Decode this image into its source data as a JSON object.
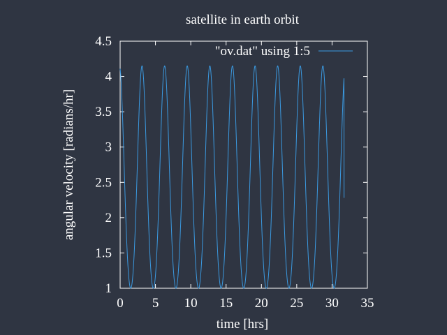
{
  "chart_data": {
    "type": "line",
    "title": "satellite in earth orbit",
    "xlabel": "time [hrs]",
    "ylabel": "angular velocity [radians/hr]",
    "xlim": [
      0,
      35
    ],
    "ylim": [
      1,
      4.5
    ],
    "xticks": [
      0,
      5,
      10,
      15,
      20,
      25,
      30,
      35
    ],
    "yticks": [
      1,
      1.5,
      2,
      2.5,
      3,
      3.5,
      4,
      4.5
    ],
    "xtick_labels": [
      "0",
      "5",
      "10",
      "15",
      "20",
      "25",
      "30",
      "35"
    ],
    "ytick_labels": [
      "1",
      "1.5",
      "2",
      "2.5",
      "3",
      "3.5",
      "4",
      "4.5"
    ],
    "grid": false,
    "legend_position": "top-right",
    "colors": {
      "background": "#2f3542",
      "axes": "#ffffff",
      "series": "#3b9ae1"
    },
    "series": [
      {
        "name": "\"ov.dat\" using 1:5",
        "period_hrs": 3.2,
        "peak_times": [
          3.1,
          6.3,
          9.5,
          12.7,
          15.9,
          19.1,
          22.3,
          25.5,
          28.7
        ],
        "min_value": 1.0,
        "max_value": 4.15,
        "end_x": 31.7,
        "end_value": 2.28
      }
    ]
  }
}
